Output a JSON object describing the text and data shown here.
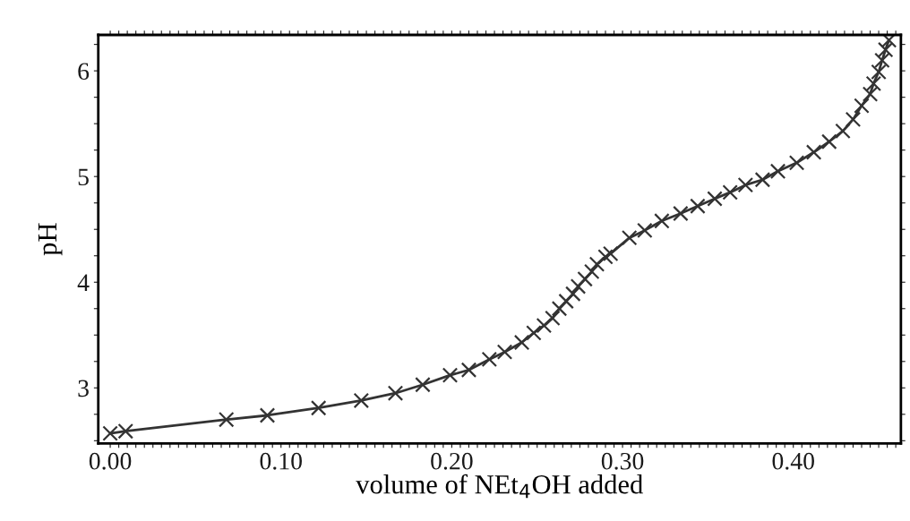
{
  "chart_data": {
    "type": "line",
    "xlabel": "volume of NEt$_{4}$OH added",
    "ylabel": "pH",
    "x": [
      0.0,
      0.009,
      0.068,
      0.092,
      0.122,
      0.147,
      0.167,
      0.183,
      0.199,
      0.21,
      0.222,
      0.231,
      0.241,
      0.248,
      0.254,
      0.259,
      0.263,
      0.267,
      0.271,
      0.274,
      0.278,
      0.282,
      0.285,
      0.29,
      0.293,
      0.304,
      0.313,
      0.323,
      0.334,
      0.344,
      0.354,
      0.363,
      0.372,
      0.382,
      0.391,
      0.402,
      0.412,
      0.421,
      0.429,
      0.435,
      0.44,
      0.445,
      0.447,
      0.45,
      0.452,
      0.454,
      0.456
    ],
    "series": [
      {
        "color": "#333333",
        "marker": "cross",
        "line_style": "solid",
        "values": [
          2.57,
          2.59,
          2.7,
          2.74,
          2.81,
          2.88,
          2.95,
          3.03,
          3.12,
          3.17,
          3.27,
          3.34,
          3.43,
          3.52,
          3.59,
          3.66,
          3.75,
          3.82,
          3.89,
          3.96,
          4.03,
          4.1,
          4.17,
          4.24,
          4.27,
          4.42,
          4.49,
          4.58,
          4.65,
          4.72,
          4.79,
          4.85,
          4.92,
          4.97,
          5.05,
          5.13,
          5.23,
          5.33,
          5.43,
          5.54,
          5.67,
          5.78,
          5.88,
          5.99,
          6.1,
          6.2,
          6.29
        ]
      }
    ],
    "xlim": [
      -0.007,
      0.463
    ],
    "ylim": [
      2.475,
      6.34
    ],
    "xticks": [
      {
        "value": 0,
        "label": "0.00"
      },
      {
        "value": 0.1,
        "label": "0.10"
      },
      {
        "value": 0.2,
        "label": "0.20"
      },
      {
        "value": 0.3,
        "label": "0.30"
      },
      {
        "value": 0.4,
        "label": "0.40"
      },
      {
        "value": 0.005,
        "label": null
      },
      {
        "value": 0.01,
        "label": null
      },
      {
        "value": 0.015,
        "label": null
      },
      {
        "value": 0.02,
        "label": null
      },
      {
        "value": 0.025,
        "label": null
      },
      {
        "value": 0.03,
        "label": null
      },
      {
        "value": 0.035,
        "label": null
      },
      {
        "value": 0.04,
        "label": null
      },
      {
        "value": 0.045,
        "label": null
      },
      {
        "value": 0.05,
        "label": null
      },
      {
        "value": 0.055,
        "label": null
      },
      {
        "value": 0.06,
        "label": null
      },
      {
        "value": 0.065,
        "label": null
      },
      {
        "value": 0.07,
        "label": null
      },
      {
        "value": 0.075,
        "label": null
      },
      {
        "value": 0.08,
        "label": null
      },
      {
        "value": 0.085,
        "label": null
      },
      {
        "value": 0.09,
        "label": null
      },
      {
        "value": 0.095,
        "label": null
      },
      {
        "value": 0.105,
        "label": null
      },
      {
        "value": 0.11,
        "label": null
      },
      {
        "value": 0.115,
        "label": null
      },
      {
        "value": 0.12,
        "label": null
      },
      {
        "value": 0.125,
        "label": null
      },
      {
        "value": 0.13,
        "label": null
      },
      {
        "value": 0.135,
        "label": null
      },
      {
        "value": 0.14,
        "label": null
      },
      {
        "value": 0.145,
        "label": null
      },
      {
        "value": 0.15,
        "label": null
      },
      {
        "value": 0.155,
        "label": null
      },
      {
        "value": 0.16,
        "label": null
      },
      {
        "value": 0.165,
        "label": null
      },
      {
        "value": 0.17,
        "label": null
      },
      {
        "value": 0.175,
        "label": null
      },
      {
        "value": 0.18,
        "label": null
      },
      {
        "value": 0.185,
        "label": null
      },
      {
        "value": 0.19,
        "label": null
      },
      {
        "value": 0.195,
        "label": null
      },
      {
        "value": 0.205,
        "label": null
      },
      {
        "value": 0.21,
        "label": null
      },
      {
        "value": 0.215,
        "label": null
      },
      {
        "value": 0.22,
        "label": null
      },
      {
        "value": 0.225,
        "label": null
      },
      {
        "value": 0.23,
        "label": null
      },
      {
        "value": 0.235,
        "label": null
      },
      {
        "value": 0.24,
        "label": null
      },
      {
        "value": 0.245,
        "label": null
      },
      {
        "value": 0.25,
        "label": null
      },
      {
        "value": 0.255,
        "label": null
      },
      {
        "value": 0.26,
        "label": null
      },
      {
        "value": 0.265,
        "label": null
      },
      {
        "value": 0.27,
        "label": null
      },
      {
        "value": 0.275,
        "label": null
      },
      {
        "value": 0.28,
        "label": null
      },
      {
        "value": 0.285,
        "label": null
      },
      {
        "value": 0.29,
        "label": null
      },
      {
        "value": 0.295,
        "label": null
      },
      {
        "value": 0.305,
        "label": null
      },
      {
        "value": 0.31,
        "label": null
      },
      {
        "value": 0.315,
        "label": null
      },
      {
        "value": 0.32,
        "label": null
      },
      {
        "value": 0.325,
        "label": null
      },
      {
        "value": 0.33,
        "label": null
      },
      {
        "value": 0.335,
        "label": null
      },
      {
        "value": 0.34,
        "label": null
      },
      {
        "value": 0.345,
        "label": null
      },
      {
        "value": 0.35,
        "label": null
      },
      {
        "value": 0.355,
        "label": null
      },
      {
        "value": 0.36,
        "label": null
      },
      {
        "value": 0.365,
        "label": null
      },
      {
        "value": 0.37,
        "label": null
      },
      {
        "value": 0.375,
        "label": null
      },
      {
        "value": 0.38,
        "label": null
      },
      {
        "value": 0.385,
        "label": null
      },
      {
        "value": 0.39,
        "label": null
      },
      {
        "value": 0.395,
        "label": null
      },
      {
        "value": 0.405,
        "label": null
      },
      {
        "value": 0.41,
        "label": null
      },
      {
        "value": 0.415,
        "label": null
      },
      {
        "value": 0.42,
        "label": null
      },
      {
        "value": 0.425,
        "label": null
      },
      {
        "value": 0.43,
        "label": null
      },
      {
        "value": 0.435,
        "label": null
      },
      {
        "value": 0.44,
        "label": null
      },
      {
        "value": 0.445,
        "label": null
      },
      {
        "value": 0.45,
        "label": null
      },
      {
        "value": 0.455,
        "label": null
      },
      {
        "value": 0.46,
        "label": null
      }
    ],
    "yticks": [
      3,
      4,
      5,
      6,
      {
        "value": 2.5,
        "label": null
      },
      {
        "value": 2.75,
        "label": null
      },
      {
        "value": 3.25,
        "label": null
      },
      {
        "value": 3.5,
        "label": null
      },
      {
        "value": 3.75,
        "label": null
      },
      {
        "value": 4.25,
        "label": null
      },
      {
        "value": 4.5,
        "label": null
      },
      {
        "value": 4.75,
        "label": null
      },
      {
        "value": 5.25,
        "label": null
      },
      {
        "value": 5.5,
        "label": null
      },
      {
        "value": 5.75,
        "label": null
      },
      {
        "value": 6.25,
        "label": null
      }
    ],
    "grid": false,
    "legend": false
  }
}
